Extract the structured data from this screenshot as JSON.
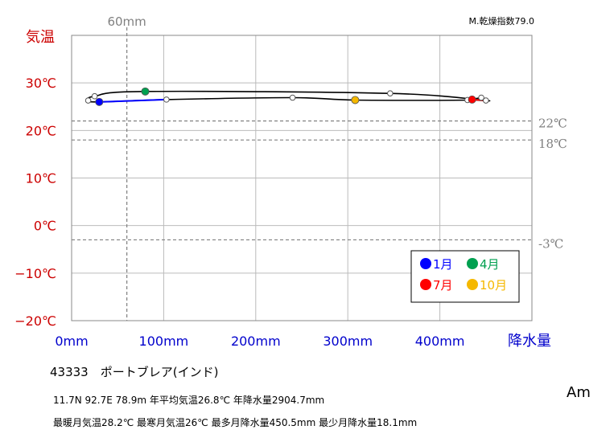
{
  "chart_data": {
    "type": "line",
    "title": "",
    "y_axis_label": "気温",
    "x_axis_label": "降水量",
    "x_unit": "mm",
    "y_unit": "℃",
    "xlim": [
      0,
      500
    ],
    "ylim": [
      -20,
      40
    ],
    "x_ticks": [
      "0mm",
      "100mm",
      "200mm",
      "300mm",
      "400mm"
    ],
    "y_ticks": [
      "30℃",
      "20℃",
      "10℃",
      "0℃",
      "−10℃",
      "−20℃"
    ],
    "aridity_index_label": "M.乾燥指数79.0",
    "reference_lines": {
      "horizontal": [
        {
          "value": 22,
          "label": "22℃"
        },
        {
          "value": 18,
          "label": "18℃"
        },
        {
          "value": -3,
          "label": "-3℃"
        }
      ],
      "vertical": [
        {
          "value": 60,
          "label": "60mm"
        }
      ]
    },
    "months": [
      {
        "month": 1,
        "precip": 30,
        "temp": 26.0
      },
      {
        "month": 2,
        "precip": 18,
        "temp": 26.3
      },
      {
        "month": 3,
        "precip": 25,
        "temp": 27.2
      },
      {
        "month": 4,
        "precip": 80,
        "temp": 28.2
      },
      {
        "month": 5,
        "precip": 346,
        "temp": 27.8
      },
      {
        "month": 6,
        "precip": 450,
        "temp": 26.3
      },
      {
        "month": 7,
        "precip": 435,
        "temp": 26.5
      },
      {
        "month": 8,
        "precip": 445,
        "temp": 26.9
      },
      {
        "month": 9,
        "precip": 430,
        "temp": 26.4
      },
      {
        "month": 10,
        "precip": 308,
        "temp": 26.4
      },
      {
        "month": 11,
        "precip": 240,
        "temp": 26.9
      },
      {
        "month": 12,
        "precip": 103,
        "temp": 26.5
      }
    ],
    "highlight_months": [
      {
        "month": 1,
        "label": "1月",
        "color": "#0000ff"
      },
      {
        "month": 4,
        "label": "4月",
        "color": "#00a050"
      },
      {
        "month": 7,
        "label": "7月",
        "color": "#ff0000"
      },
      {
        "month": 10,
        "label": "10月",
        "color": "#f5b800"
      }
    ],
    "legend_position": "bottom-right",
    "grid": true
  },
  "colors": {
    "temp_axis": "#cc0000",
    "precip_axis": "#0000cc",
    "reference": "#808080",
    "grid": "#bbbbbb",
    "jan_segment": "#0000ff",
    "jul_segment": "#ff0000"
  },
  "info": {
    "station": "43333　ポートブレア(インド)",
    "stats_line1": "11.7N  92.7E 78.9m  年平均気温26.8℃ 年降水量2904.7mm",
    "stats_line2": "最暖月気温28.2℃ 最寒月気温26℃ 最多月降水量450.5mm 最少月降水量18.1mm",
    "climate_code": "Am"
  }
}
